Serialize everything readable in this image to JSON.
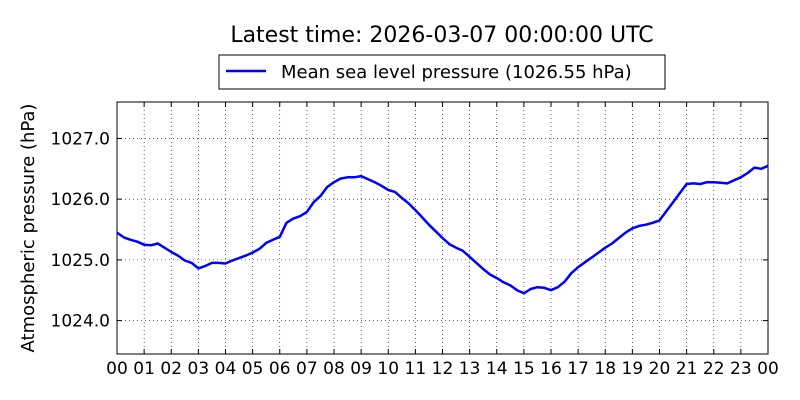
{
  "chart_data": {
    "type": "line",
    "title": "Latest time: 2026-03-07 00:00:00 UTC",
    "xlabel": "",
    "ylabel": "Atmospheric pressure (hPa)",
    "xlim": [
      0,
      24
    ],
    "ylim": [
      1023.45,
      1027.6
    ],
    "grid": true,
    "legend_position": "top-center",
    "x_tick_labels": [
      "00",
      "01",
      "02",
      "03",
      "04",
      "05",
      "06",
      "07",
      "08",
      "09",
      "10",
      "11",
      "12",
      "13",
      "14",
      "15",
      "16",
      "17",
      "18",
      "19",
      "20",
      "21",
      "22",
      "23",
      "00"
    ],
    "y_ticks": [
      1024.0,
      1025.0,
      1026.0,
      1027.0
    ],
    "y_tick_labels": [
      "1024.0",
      "1025.0",
      "1026.0",
      "1027.0"
    ],
    "series": [
      {
        "name": "Mean sea level pressure (1026.55 hPa)",
        "color": "#0000ff",
        "x": [
          0.0,
          0.25,
          0.5,
          0.75,
          1.0,
          1.25,
          1.5,
          1.75,
          2.0,
          2.25,
          2.5,
          2.75,
          3.0,
          3.25,
          3.5,
          3.75,
          4.0,
          4.25,
          4.5,
          4.75,
          5.0,
          5.25,
          5.5,
          5.75,
          6.0,
          6.25,
          6.5,
          6.75,
          7.0,
          7.25,
          7.5,
          7.75,
          8.0,
          8.25,
          8.5,
          8.75,
          9.0,
          9.25,
          9.5,
          9.75,
          10.0,
          10.25,
          10.5,
          10.75,
          11.0,
          11.25,
          11.5,
          11.75,
          12.0,
          12.25,
          12.5,
          12.75,
          13.0,
          13.25,
          13.5,
          13.75,
          14.0,
          14.25,
          14.5,
          14.75,
          15.0,
          15.25,
          15.5,
          15.75,
          16.0,
          16.25,
          16.5,
          16.75,
          17.0,
          17.25,
          17.5,
          17.75,
          18.0,
          18.25,
          18.5,
          18.75,
          19.0,
          19.25,
          19.5,
          19.75,
          20.0,
          20.25,
          20.5,
          20.75,
          21.0,
          21.25,
          21.5,
          21.75,
          22.0,
          22.25,
          22.5,
          22.75,
          23.0,
          23.25,
          23.5,
          23.75,
          24.0
        ],
        "y": [
          1025.45,
          1025.37,
          1025.33,
          1025.3,
          1025.25,
          1025.24,
          1025.27,
          1025.2,
          1025.13,
          1025.07,
          1024.99,
          1024.95,
          1024.86,
          1024.9,
          1024.95,
          1024.95,
          1024.94,
          1024.99,
          1025.03,
          1025.07,
          1025.12,
          1025.18,
          1025.28,
          1025.33,
          1025.38,
          1025.61,
          1025.68,
          1025.72,
          1025.79,
          1025.95,
          1026.05,
          1026.2,
          1026.28,
          1026.34,
          1026.36,
          1026.36,
          1026.38,
          1026.33,
          1026.28,
          1026.22,
          1026.15,
          1026.12,
          1026.02,
          1025.93,
          1025.82,
          1025.7,
          1025.58,
          1025.47,
          1025.36,
          1025.26,
          1025.2,
          1025.15,
          1025.05,
          1024.95,
          1024.85,
          1024.76,
          1024.7,
          1024.63,
          1024.58,
          1024.5,
          1024.45,
          1024.52,
          1024.55,
          1024.54,
          1024.5,
          1024.55,
          1024.64,
          1024.78,
          1024.88,
          1024.96,
          1025.04,
          1025.12,
          1025.2,
          1025.27,
          1025.36,
          1025.45,
          1025.52,
          1025.56,
          1025.58,
          1025.61,
          1025.65,
          1025.8,
          1025.95,
          1026.1,
          1026.25,
          1026.26,
          1026.25,
          1026.28,
          1026.28,
          1026.27,
          1026.26,
          1026.31,
          1026.36,
          1026.43,
          1026.52,
          1026.5,
          1026.55
        ]
      }
    ]
  }
}
